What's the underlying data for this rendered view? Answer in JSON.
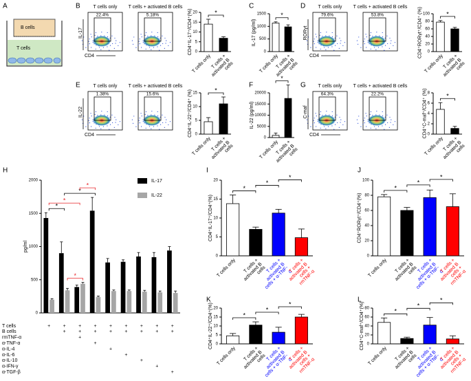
{
  "diagram": {
    "panel": "A",
    "labels": [
      "B cells",
      "T cells"
    ]
  },
  "chart_data": [
    {
      "type": "flow",
      "panel": "B",
      "titles": [
        "T cells only",
        "T cells + activated B cells"
      ],
      "gates": [
        "22.4%",
        "5.18%"
      ],
      "ylabel": "IL-17",
      "xlabel": "CD4"
    },
    {
      "type": "bar",
      "categories": [
        "T cells only",
        "T cells + activated B cells"
      ],
      "values": [
        14,
        6.8
      ],
      "errors": [
        2.5,
        0.8
      ],
      "colors": [
        "#ffffff",
        "#000000"
      ],
      "ylim": [
        0,
        20
      ],
      "yticks": [
        0,
        5,
        10,
        15,
        20
      ],
      "ylabel": "CD4⁺IL-17⁺/CD4⁺(%)",
      "significance": [
        {
          "from": 0,
          "to": 1,
          "label": "*",
          "color": "#000000"
        }
      ]
    },
    {
      "type": "bar",
      "panel": "C",
      "categories": [
        "T cells only",
        "T cells + activated B cells"
      ],
      "values": [
        1130,
        980
      ],
      "errors": [
        50,
        80
      ],
      "colors": [
        "#ffffff",
        "#000000"
      ],
      "ylim": [
        0,
        1500
      ],
      "yticks": [
        0,
        500,
        1000,
        1500
      ],
      "ylabel": "IL-17 (pg/ml)",
      "significance": [
        {
          "from": 0,
          "to": 1,
          "label": "*",
          "color": "#000000"
        }
      ]
    },
    {
      "type": "flow",
      "panel": "D",
      "titles": [
        "T cells only",
        "T cells + activated B cells"
      ],
      "gates": [
        "79.6%",
        "53.8%"
      ],
      "ylabel": "RORγt",
      "xlabel": "CD4"
    },
    {
      "type": "bar",
      "categories": [
        "T cells only",
        "T cells + activated B cells"
      ],
      "values": [
        78,
        60
      ],
      "errors": [
        4,
        4
      ],
      "colors": [
        "#ffffff",
        "#000000"
      ],
      "ylim": [
        0,
        100
      ],
      "yticks": [
        0,
        20,
        40,
        60,
        80,
        100
      ],
      "ylabel": "CD4⁺RORγt⁺/CD4⁺ (%)",
      "significance": [
        {
          "from": 0,
          "to": 1,
          "label": "*",
          "color": "#000000"
        }
      ]
    },
    {
      "type": "flow",
      "panel": "E",
      "titles": [
        "T cells only",
        "T cells + activated B cells"
      ],
      "gates": [
        "1.38%",
        "15.6%"
      ],
      "ylabel": "IL-22",
      "xlabel": "CD4"
    },
    {
      "type": "bar",
      "categories": [
        "T cells only",
        "T cells + activated B cells"
      ],
      "values": [
        4.5,
        11
      ],
      "errors": [
        1.5,
        2.5
      ],
      "colors": [
        "#ffffff",
        "#000000"
      ],
      "ylim": [
        0,
        15
      ],
      "yticks": [
        0,
        5,
        10,
        15
      ],
      "ylabel": "CD4⁺IL-22⁺/CD4⁺ (%)",
      "significance": [
        {
          "from": 0,
          "to": 1,
          "label": "*",
          "color": "#000000"
        }
      ]
    },
    {
      "type": "bar",
      "panel": "F",
      "categories": [
        "T cells only",
        "T cells + activated B cells"
      ],
      "values": [
        1000,
        17500
      ],
      "errors": [
        1000,
        6000
      ],
      "colors": [
        "#ffffff",
        "#000000"
      ],
      "ylim": [
        0,
        20000
      ],
      "yticks": [
        0,
        5000,
        10000,
        15000,
        20000
      ],
      "ylabel": "IL-22 (pg/ml)",
      "significance": [
        {
          "from": 0,
          "to": 1,
          "label": "*",
          "color": "#000000"
        }
      ]
    },
    {
      "type": "flow",
      "panel": "G",
      "titles": [
        "T cells only",
        "T cells + activated B cells"
      ],
      "gates": [
        "64.3%",
        "22.2%"
      ],
      "ylabel": "C-maf",
      "xlabel": "CD4"
    },
    {
      "type": "bar",
      "categories": [
        "T cells only",
        "T cells + activated B cells"
      ],
      "values": [
        4.8,
        1.1
      ],
      "errors": [
        1.3,
        0.4
      ],
      "colors": [
        "#ffffff",
        "#000000"
      ],
      "ylim": [
        0,
        8
      ],
      "yticks": [
        0,
        2,
        4,
        6,
        8
      ],
      "ylabel": "CD4⁺C-maf⁺/CD4⁺ (%)",
      "significance": [
        {
          "from": 0,
          "to": 1,
          "label": "*",
          "color": "#000000"
        }
      ]
    },
    {
      "type": "grouped_bar",
      "panel": "H",
      "ylabel": "pg/ml",
      "ylim": [
        0,
        2000
      ],
      "yticks": [
        0,
        500,
        1000,
        1500,
        2000
      ],
      "series": [
        {
          "name": "IL-17",
          "color": "#000000",
          "values": [
            1430,
            900,
            390,
            1540,
            760,
            770,
            850,
            840,
            940
          ],
          "errors": [
            80,
            170,
            30,
            200,
            60,
            30,
            60,
            70,
            60
          ]
        },
        {
          "name": "IL-22",
          "color": "#a6a6a6",
          "values": [
            200,
            340,
            440,
            240,
            330,
            330,
            320,
            310,
            300
          ],
          "errors": [
            15,
            30,
            20,
            15,
            15,
            15,
            20,
            20,
            30
          ]
        }
      ],
      "significance": [
        {
          "from": 0,
          "to": 1,
          "label": "*",
          "color": "#000000"
        },
        {
          "from": 1,
          "to": 2,
          "label": "*",
          "color": "#e8262a",
          "series": 1
        },
        {
          "from": 0,
          "to": 2,
          "label": "*",
          "color": "#e8262a"
        },
        {
          "from": 1,
          "to": 3,
          "label": "*",
          "color": "#000000"
        },
        {
          "from": 2,
          "to": 3,
          "label": "*",
          "color": "#e8262a"
        }
      ],
      "table": [
        {
          "label": "T cells",
          "marks": [
            "+",
            "+",
            "+",
            "+",
            "+",
            "+",
            "+",
            "+",
            "+"
          ]
        },
        {
          "label": "B cells",
          "marks": [
            null,
            "+",
            "+",
            "+",
            "+",
            "+",
            "+",
            "+",
            "+"
          ]
        },
        {
          "label": "rmTNF-α",
          "marks": [
            null,
            null,
            "+",
            null,
            null,
            null,
            null,
            null,
            null
          ]
        },
        {
          "label": "α-TNF-α",
          "marks": [
            null,
            null,
            null,
            "+",
            null,
            null,
            null,
            null,
            null
          ]
        },
        {
          "label": "α-IL-4",
          "marks": [
            null,
            null,
            null,
            null,
            "+",
            null,
            null,
            null,
            null
          ]
        },
        {
          "label": "α-IL-6",
          "marks": [
            null,
            null,
            null,
            null,
            null,
            "+",
            null,
            null,
            null
          ]
        },
        {
          "label": "α-IL-10",
          "marks": [
            null,
            null,
            null,
            null,
            null,
            null,
            "+",
            null,
            null
          ]
        },
        {
          "label": "α-IFN-γ",
          "marks": [
            null,
            null,
            null,
            null,
            null,
            null,
            null,
            "+",
            null
          ]
        },
        {
          "label": "α-TGF-β",
          "marks": [
            null,
            null,
            null,
            null,
            null,
            null,
            null,
            null,
            "+"
          ]
        }
      ]
    },
    {
      "type": "bar",
      "panel": "I",
      "categories": [
        "T cells only",
        "T cells + activated B cells",
        "T cells + activated B cells + α-TNF-α",
        "T cells + activated B cells + rmTNF-α"
      ],
      "values": [
        13.8,
        7,
        11.3,
        4.8
      ],
      "errors": [
        2.3,
        0.6,
        1,
        2.3
      ],
      "colors": [
        "#ffffff",
        "#000000",
        "#0000ff",
        "#ff0000"
      ],
      "label_colors": [
        "#000000",
        "#000000",
        "#0000ff",
        "#ff0000"
      ],
      "ylim": [
        0,
        20
      ],
      "yticks": [
        0,
        5,
        10,
        15,
        20
      ],
      "ylabel": "CD4⁺IL-17⁺/CD4⁺(%)",
      "significance": [
        {
          "from": 0,
          "to": 1,
          "label": "*",
          "color": "#000000"
        },
        {
          "from": 1,
          "to": 2,
          "label": "*",
          "color": "#000000"
        },
        {
          "from": 2,
          "to": 3,
          "label": "*",
          "color": "#000000"
        }
      ]
    },
    {
      "type": "bar",
      "panel": "J",
      "categories": [
        "T cells only",
        "T cells + activated B cells",
        "T cells + activated B cells + α-TNF-α",
        "T cells + activated B cells + rmTNF-α"
      ],
      "values": [
        78,
        60,
        77,
        65
      ],
      "errors": [
        3,
        4,
        10,
        17
      ],
      "colors": [
        "#ffffff",
        "#000000",
        "#0000ff",
        "#ff0000"
      ],
      "label_colors": [
        "#000000",
        "#000000",
        "#0000ff",
        "#ff0000"
      ],
      "ylim": [
        0,
        100
      ],
      "yticks": [
        0,
        20,
        40,
        60,
        80,
        100
      ],
      "ylabel": "CD4⁺RORγt⁺/CD4⁺(%)",
      "significance": [
        {
          "from": 0,
          "to": 1,
          "label": "*",
          "color": "#000000"
        },
        {
          "from": 1,
          "to": 2,
          "label": "*",
          "color": "#000000"
        },
        {
          "from": 2,
          "to": 3,
          "label": "*",
          "color": "#000000"
        }
      ]
    },
    {
      "type": "bar",
      "panel": "K",
      "categories": [
        "T cells only",
        "T cells + activated B cells",
        "T cells + activated B cells + α-TNF-α",
        "T cells + activated B cells + rmTNF-α"
      ],
      "values": [
        4.5,
        10.5,
        6.5,
        15
      ],
      "errors": [
        1.3,
        1.8,
        2.8,
        1.5
      ],
      "colors": [
        "#ffffff",
        "#000000",
        "#0000ff",
        "#ff0000"
      ],
      "label_colors": [
        "#000000",
        "#000000",
        "#0000ff",
        "#ff0000"
      ],
      "ylim": [
        0,
        20
      ],
      "yticks": [
        0,
        5,
        10,
        15,
        20
      ],
      "ylabel": "CD4⁺IL-22⁺/CD4⁺(%)",
      "significance": [
        {
          "from": 0,
          "to": 1,
          "label": "*",
          "color": "#000000"
        },
        {
          "from": 1,
          "to": 2,
          "label": "*",
          "color": "#000000"
        },
        {
          "from": 2,
          "to": 3,
          "label": "*",
          "color": "#000000"
        }
      ]
    },
    {
      "type": "bar",
      "panel": "L",
      "categories": [
        "T cells only",
        "T cells + activated B cells",
        "T cells + activated B cells + α-TNF-α",
        "T cells + activated B cells + rmTNF-α"
      ],
      "values": [
        48,
        12,
        42,
        11
      ],
      "errors": [
        10,
        3,
        17,
        7
      ],
      "colors": [
        "#ffffff",
        "#000000",
        "#0000ff",
        "#ff0000"
      ],
      "label_colors": [
        "#000000",
        "#000000",
        "#0000ff",
        "#ff0000"
      ],
      "ylim": [
        0,
        80
      ],
      "yticks": [
        0,
        20,
        40,
        60,
        80
      ],
      "ylabel": "CD4⁺C-maf⁺/CD4⁺(%)",
      "significance": [
        {
          "from": 0,
          "to": 1,
          "label": "*",
          "color": "#000000"
        },
        {
          "from": 1,
          "to": 2,
          "label": "*",
          "color": "#000000"
        },
        {
          "from": 2,
          "to": 3,
          "label": "*",
          "color": "#000000"
        }
      ]
    }
  ]
}
